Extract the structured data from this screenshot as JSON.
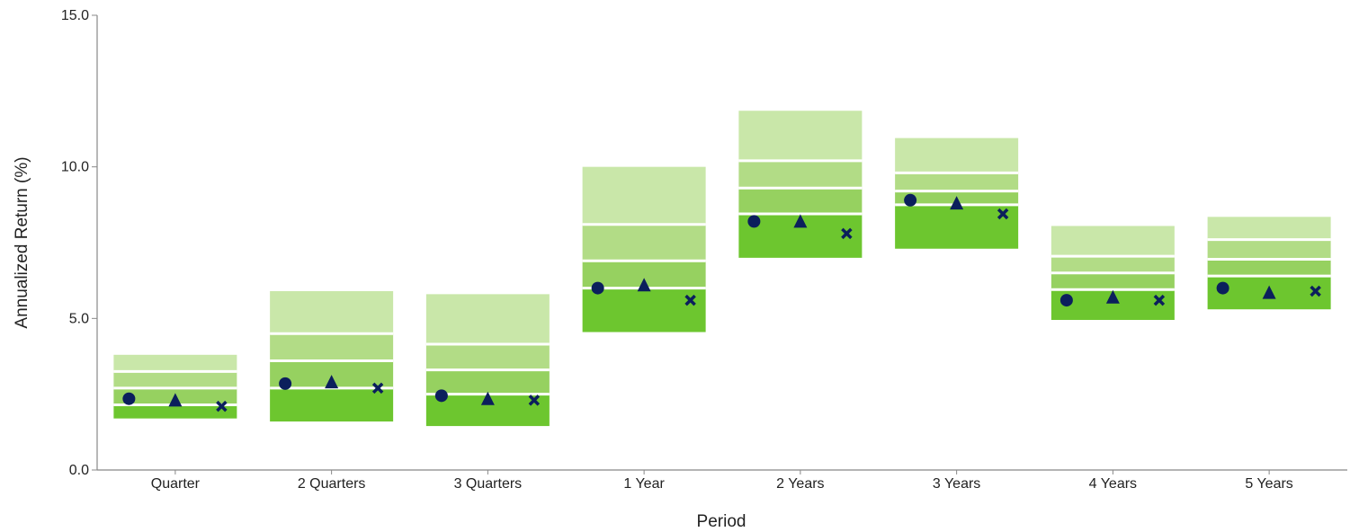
{
  "chart_data": {
    "type": "box",
    "title": "",
    "xlabel": "Period",
    "ylabel": "Annualized Return (%)",
    "ylim": [
      0,
      15
    ],
    "yticks": [
      "0.0",
      "5.0",
      "10.0",
      "15.0"
    ],
    "grid": false,
    "categories": [
      "Quarter",
      "2 Quarters",
      "3 Quarters",
      "1 Year",
      "2 Years",
      "3 Years",
      "4 Years",
      "5 Years"
    ],
    "band_colors": [
      "#c9e7a9",
      "#b2dc86",
      "#96d160",
      "#6dc62f"
    ],
    "band_edges": [
      [
        3.8,
        3.25,
        2.7,
        2.15,
        1.7
      ],
      [
        5.9,
        4.5,
        3.6,
        2.7,
        1.6
      ],
      [
        5.8,
        4.15,
        3.3,
        2.5,
        1.45
      ],
      [
        10.0,
        8.1,
        6.9,
        6.0,
        4.55
      ],
      [
        11.85,
        10.2,
        9.3,
        8.45,
        7.0
      ],
      [
        10.95,
        9.8,
        9.2,
        8.75,
        7.3
      ],
      [
        8.05,
        7.05,
        6.5,
        5.95,
        4.95
      ],
      [
        8.35,
        7.6,
        6.95,
        6.4,
        5.3
      ]
    ],
    "series": [
      {
        "marker": "circle",
        "color": "#0b1f5c",
        "values": [
          2.35,
          2.85,
          2.45,
          6.0,
          8.2,
          8.9,
          5.6,
          6.0
        ]
      },
      {
        "marker": "triangle",
        "color": "#0b1f5c",
        "values": [
          2.3,
          2.9,
          2.35,
          6.1,
          8.2,
          8.8,
          5.7,
          5.85
        ]
      },
      {
        "marker": "x",
        "color": "#0b1f5c",
        "values": [
          2.1,
          2.7,
          2.3,
          5.6,
          7.8,
          8.45,
          5.6,
          5.9
        ]
      }
    ]
  }
}
